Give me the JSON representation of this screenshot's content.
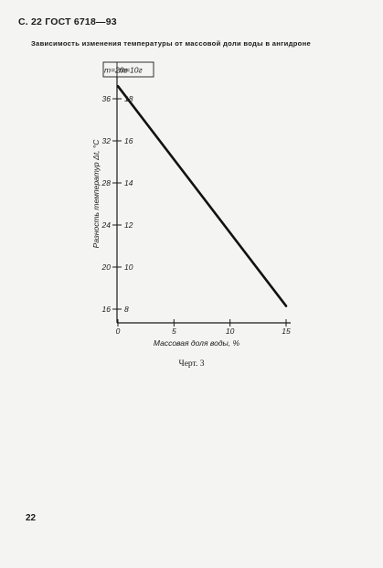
{
  "page": {
    "header": "С. 22 ГОСТ 6718—93",
    "caption": "Зависимость изменения температуры от массовой доли воды в ангидроне",
    "figure_label": "Черт. 3",
    "page_number": "22"
  },
  "chart_data": {
    "type": "line",
    "title": "",
    "xlabel": "Массовая доля воды, %",
    "ylabel": "Разность температур Δt, °С",
    "x_ticks": [
      "0",
      "5",
      "10",
      "15"
    ],
    "xlim": [
      0,
      15
    ],
    "y_axes": [
      {
        "header": "m=20г",
        "ticks": [
          "16",
          "20",
          "24",
          "28",
          "32",
          "36"
        ],
        "ylim": [
          16,
          36
        ]
      },
      {
        "header": "m=10г",
        "ticks": [
          "8",
          "10",
          "12",
          "14",
          "16",
          "18"
        ],
        "ylim": [
          8,
          18
        ]
      }
    ],
    "series": [
      {
        "x": [
          0,
          15
        ],
        "y_m20": [
          37.2,
          16.3
        ],
        "y_m10": [
          18.6,
          8.15
        ]
      }
    ],
    "grid": false,
    "legend": "none"
  }
}
